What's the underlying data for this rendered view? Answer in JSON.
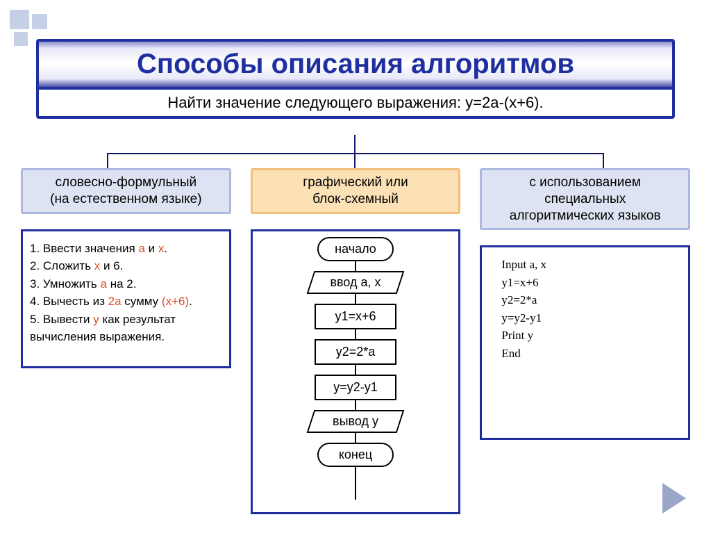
{
  "title": "Способы описания алгоритмов",
  "subtitle": "Найти значение следующего выражения: y=2a-(x+6).",
  "colors": {
    "frame_border": "#1f2fa0",
    "connector": "#14166b",
    "header_blue_bg": "#dde3f3",
    "header_blue_border": "#acb8e0",
    "header_orange_bg": "#fce0b6",
    "header_orange_border": "#f0c07a",
    "highlight": "#d94f2a",
    "corner_square": "#c5d0e6",
    "nav_arrow": "#9aa6c8"
  },
  "columns": {
    "verbal": {
      "header_line1": "словесно-формульный",
      "header_line2": "(на естественном языке)",
      "steps": {
        "s1_pre": "1.   Ввести значения ",
        "s1_a": "a",
        "s1_mid": " и ",
        "s1_x": "x",
        "s1_post": ".",
        "s2_pre": "2.    Сложить ",
        "s2_x": "x",
        "s2_post": " и 6.",
        "s3_pre": "3.    Умножить ",
        "s3_a": "a",
        "s3_post": " на 2.",
        "s4_pre": "4.    Вычесть из ",
        "s4_2a": "2a",
        "s4_mid": " сумму ",
        "s4_expr": "(x+6)",
        "s4_post": ".",
        "s5_pre": "5.  Вывести  ",
        "s5_y": "y",
        "s5_post": "  как   результат вычисления выражения."
      }
    },
    "graphical": {
      "header_line1": "графический или",
      "header_line2": "блок-схемный",
      "flowchart": {
        "nodes": [
          {
            "type": "terminator",
            "label": "начало"
          },
          {
            "type": "parallelogram",
            "label": "ввод a, x"
          },
          {
            "type": "rect",
            "label": "y1=x+6"
          },
          {
            "type": "rect",
            "label": "y2=2*a"
          },
          {
            "type": "rect",
            "label": "y=y2-y1"
          },
          {
            "type": "parallelogram",
            "label": "вывод y"
          },
          {
            "type": "terminator",
            "label": "конец"
          }
        ]
      }
    },
    "code": {
      "header_line1": "с использованием",
      "header_line2": "специальных",
      "header_line3": "алгоритмических языков",
      "lines": {
        "l1": "Input a, x",
        "l2": "y1=x+6",
        "l3": "y2=2*a",
        "l4": "y=y2-y1",
        "l5": "Print y",
        "l6": "End"
      }
    }
  }
}
